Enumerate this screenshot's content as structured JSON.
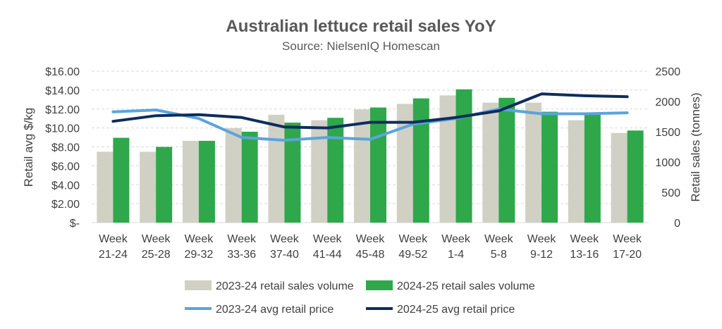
{
  "chart_data": {
    "type": "bar",
    "title": "Australian lettuce retail sales YoY",
    "subtitle": "Source: NielsenIQ Homescan",
    "categories": [
      [
        "Week",
        "21-24"
      ],
      [
        "Week",
        "25-28"
      ],
      [
        "Week",
        "29-32"
      ],
      [
        "Week",
        "33-36"
      ],
      [
        "Week",
        "37-40"
      ],
      [
        "Week",
        "41-44"
      ],
      [
        "Week",
        "45-48"
      ],
      [
        "Week",
        "49-52"
      ],
      [
        "Week",
        "1-4"
      ],
      [
        "Week",
        "5-8"
      ],
      [
        "Week",
        "9-12"
      ],
      [
        "Week",
        "13-16"
      ],
      [
        "Week",
        "17-20"
      ]
    ],
    "ylabel_left": "Retail avg $/kg",
    "ylabel_right": "Retail sales (tonnes)",
    "ylim_left": [
      0,
      16
    ],
    "ylim_right": [
      0,
      2500
    ],
    "yticks_left": [
      "$16.00",
      "$14.00",
      "$12.00",
      "$10.00",
      "$8.00",
      "$6.00",
      "$4.00",
      "$2.00",
      "$-"
    ],
    "yticks_right": [
      "2500",
      "2000",
      "1500",
      "1000",
      "500",
      "0"
    ],
    "grid": true,
    "legend_position": "bottom",
    "bar_series": [
      {
        "name": "2023-24 retail sales volume",
        "color": "#d0d0c4",
        "axis": "right",
        "values": [
          1170,
          1170,
          1350,
          1560,
          1780,
          1690,
          1870,
          1960,
          2100,
          1980,
          1980,
          1690,
          1480
        ]
      },
      {
        "name": "2024-25 retail sales volume",
        "color": "#2ea84a",
        "axis": "right",
        "values": [
          1400,
          1250,
          1350,
          1500,
          1650,
          1730,
          1900,
          2050,
          2200,
          2060,
          1830,
          1800,
          1520
        ]
      }
    ],
    "line_series": [
      {
        "name": "2023-24 avg retail price",
        "color": "#5ba4dc",
        "axis": "left",
        "values": [
          11.7,
          11.9,
          11.0,
          9.0,
          8.7,
          9.0,
          8.8,
          10.4,
          11.0,
          12.0,
          11.5,
          11.5,
          11.6
        ]
      },
      {
        "name": "2024-25 avg retail price",
        "color": "#0d2d5c",
        "axis": "left",
        "values": [
          10.7,
          11.3,
          11.4,
          11.1,
          10.1,
          10.0,
          10.6,
          10.6,
          11.1,
          11.8,
          13.6,
          13.4,
          13.3
        ]
      }
    ]
  }
}
